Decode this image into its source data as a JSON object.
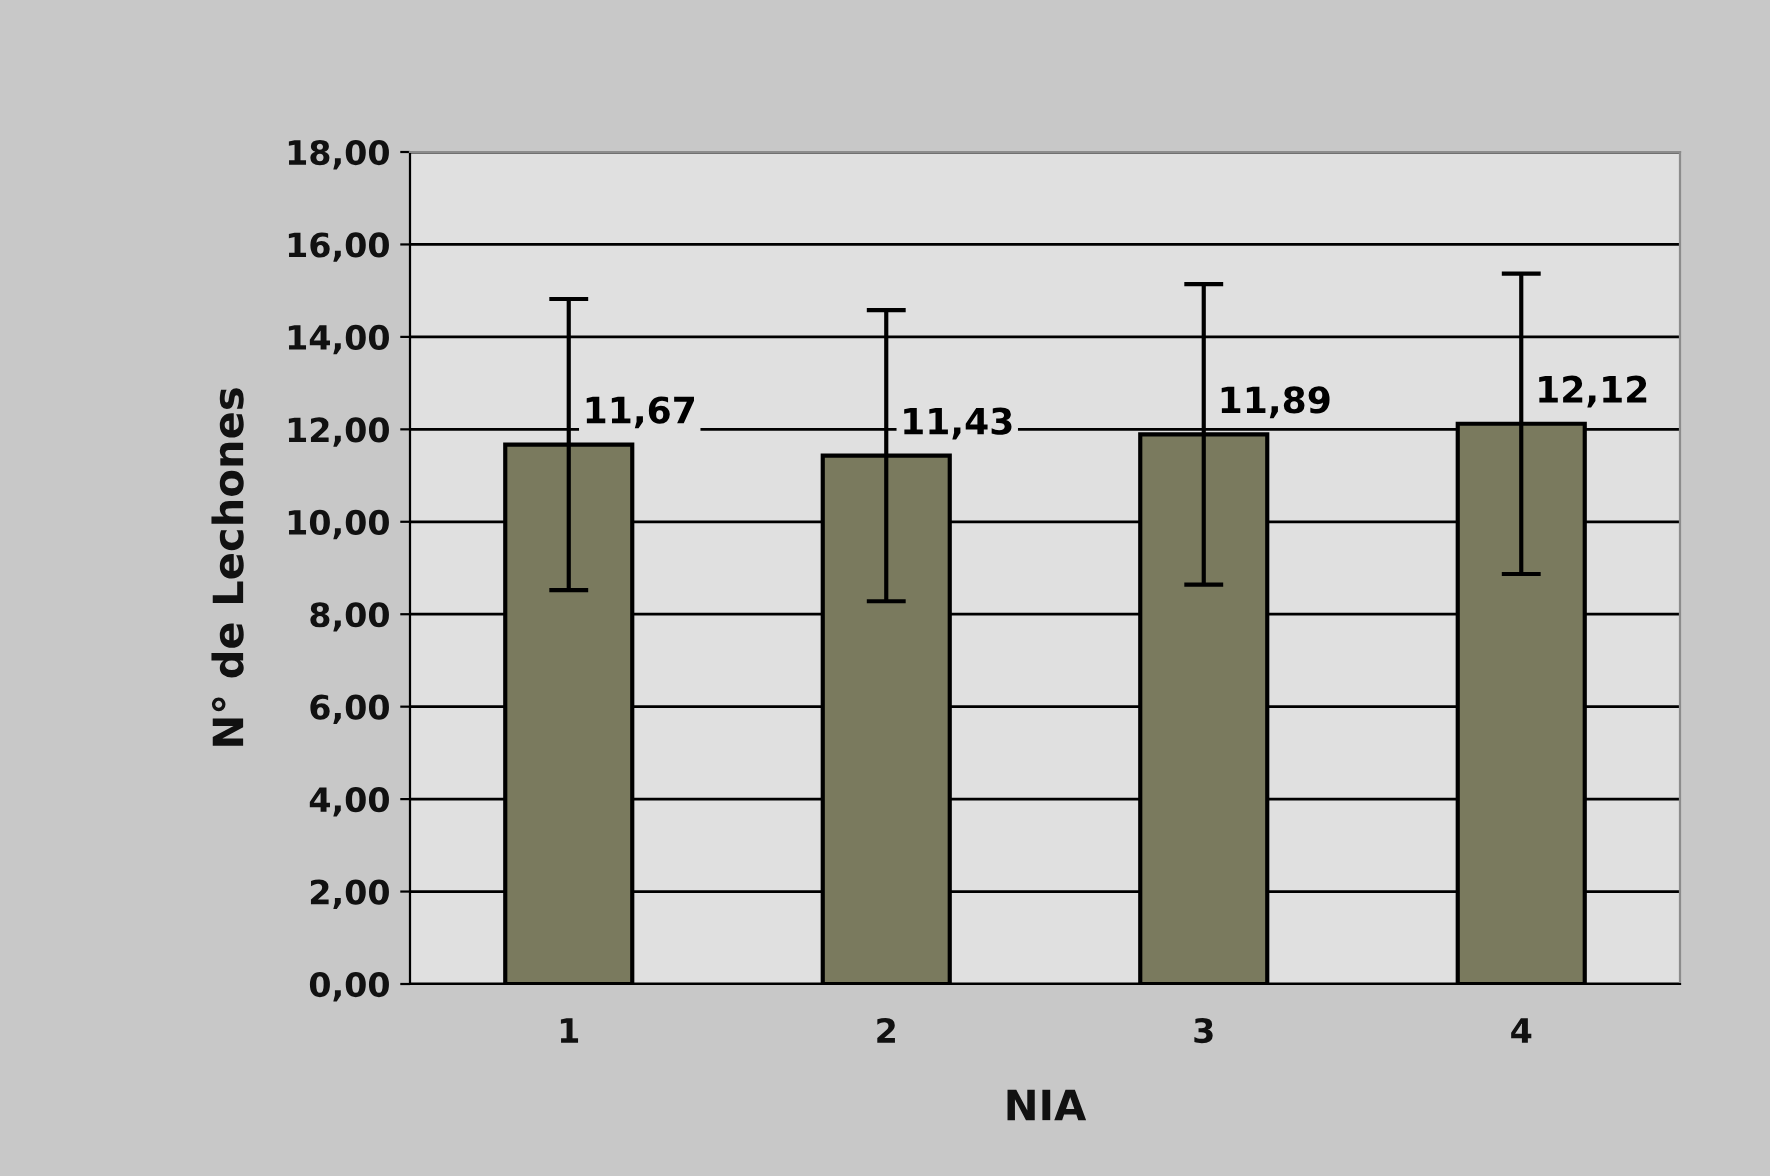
{
  "chart_data": {
    "type": "bar",
    "xlabel": "NIA",
    "ylabel": "N° de Lechones",
    "categories": [
      "1",
      "2",
      "3",
      "4"
    ],
    "values": [
      11.67,
      11.43,
      11.89,
      12.12
    ],
    "errors": [
      3.15,
      3.15,
      3.25,
      3.25
    ],
    "value_labels": [
      "11,67",
      "11,43",
      "11,89",
      "12,12"
    ],
    "color": "#7a7a5e",
    "ylim": [
      0,
      18
    ],
    "yticks": [
      {
        "value": 0,
        "label": "0,00"
      },
      {
        "value": 2,
        "label": "2,00"
      },
      {
        "value": 4,
        "label": "4,00"
      },
      {
        "value": 6,
        "label": "6,00"
      },
      {
        "value": 8,
        "label": "8,00"
      },
      {
        "value": 10,
        "label": "10,00"
      },
      {
        "value": 12,
        "label": "12,00"
      },
      {
        "value": 14,
        "label": "14,00"
      },
      {
        "value": 16,
        "label": "16,00"
      },
      {
        "value": 18,
        "label": "18,00"
      }
    ],
    "grid": "y",
    "legend": false
  }
}
